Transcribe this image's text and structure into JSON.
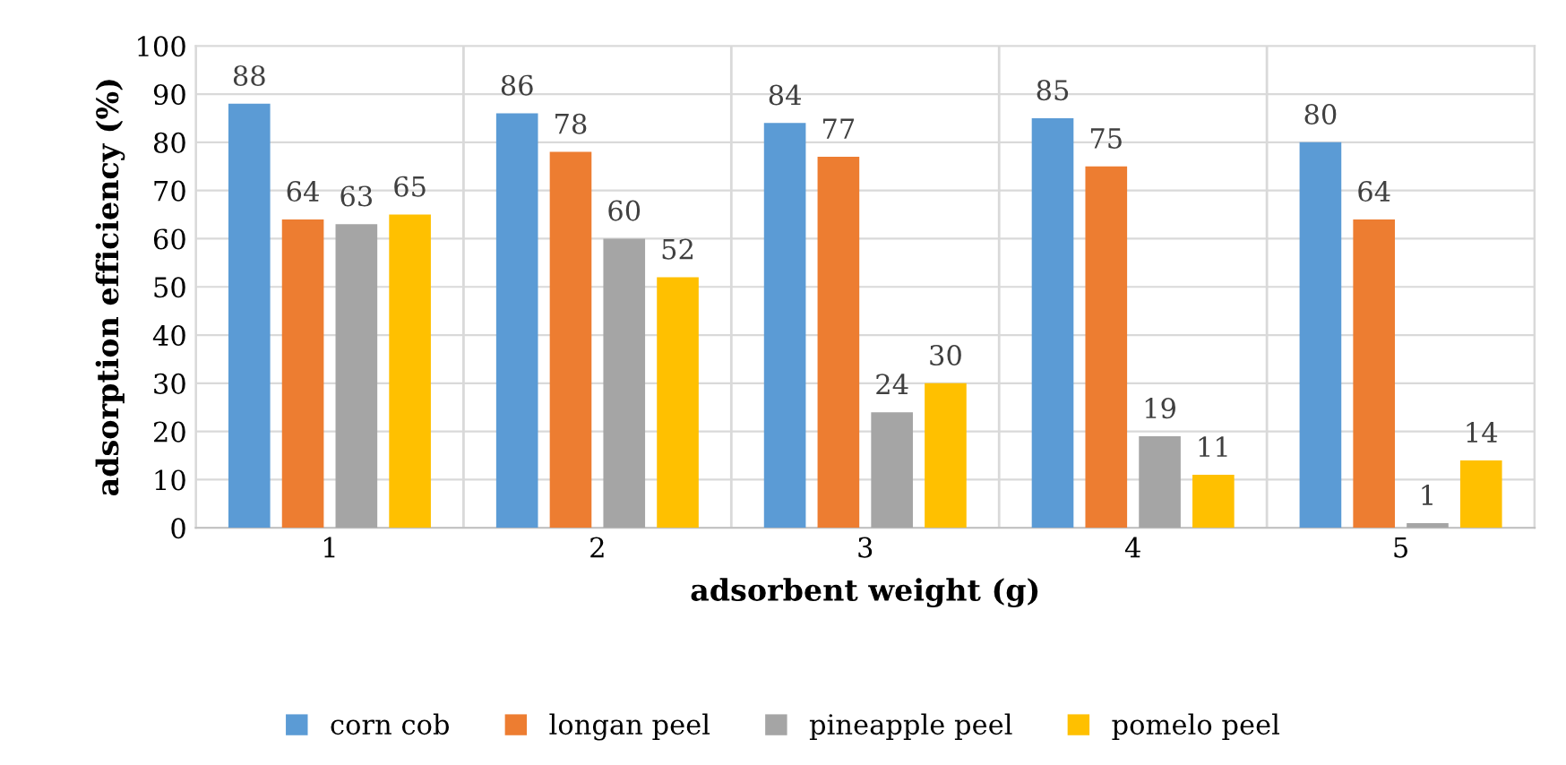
{
  "chart_data": {
    "type": "bar",
    "xlabel": "adsorbent weight (g)",
    "ylabel": "adsorption efficiency (%)",
    "categories": [
      "1",
      "2",
      "3",
      "4",
      "5"
    ],
    "series": [
      {
        "name": "corn cob",
        "color": "#5b9bd5",
        "values": [
          88,
          86,
          84,
          85,
          80
        ]
      },
      {
        "name": "longan peel",
        "color": "#ed7d31",
        "values": [
          64,
          78,
          77,
          75,
          64
        ]
      },
      {
        "name": "pineapple peel",
        "color": "#a5a5a5",
        "values": [
          63,
          60,
          24,
          19,
          1
        ]
      },
      {
        "name": "pomelo peel",
        "color": "#ffc000",
        "values": [
          65,
          52,
          30,
          11,
          14
        ]
      }
    ],
    "ylim": [
      0,
      100
    ],
    "yticks": [
      0,
      10,
      20,
      30,
      40,
      50,
      60,
      70,
      80,
      90,
      100
    ],
    "grid": true,
    "legend": "bottom",
    "data_labels": true
  }
}
